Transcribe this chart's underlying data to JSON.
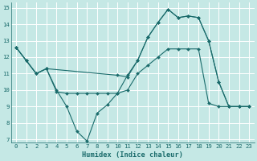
{
  "xlabel": "Humidex (Indice chaleur)",
  "xlim": [
    -0.5,
    23.5
  ],
  "ylim": [
    6.8,
    15.3
  ],
  "yticks": [
    7,
    8,
    9,
    10,
    11,
    12,
    13,
    14,
    15
  ],
  "xticks": [
    0,
    1,
    2,
    3,
    4,
    5,
    6,
    7,
    8,
    9,
    10,
    11,
    12,
    13,
    14,
    15,
    16,
    17,
    18,
    19,
    20,
    21,
    22,
    23
  ],
  "bg_color": "#c5e8e5",
  "line_color": "#1a6b6b",
  "grid_color": "#ffffff",
  "lines": [
    {
      "x": [
        0,
        1,
        2,
        3,
        10,
        11,
        12,
        13,
        14,
        15,
        16,
        17,
        18,
        19,
        20,
        21,
        22,
        23
      ],
      "y": [
        12.6,
        11.8,
        11.0,
        11.3,
        10.9,
        10.8,
        11.8,
        13.2,
        14.1,
        14.9,
        14.4,
        14.5,
        14.4,
        13.0,
        10.5,
        9.0,
        9.0,
        9.0
      ]
    },
    {
      "x": [
        0,
        1,
        2,
        3,
        4,
        5,
        6,
        7,
        8,
        9,
        10,
        11,
        12,
        13,
        14,
        15,
        16,
        17,
        18,
        19,
        20,
        21,
        22,
        23
      ],
      "y": [
        12.6,
        11.8,
        11.0,
        11.3,
        9.9,
        9.8,
        9.8,
        9.8,
        9.8,
        9.8,
        9.8,
        10.0,
        11.0,
        11.5,
        12.0,
        12.5,
        12.5,
        12.5,
        12.5,
        9.2,
        9.0,
        9.0,
        9.0,
        9.0
      ]
    },
    {
      "x": [
        0,
        1,
        2,
        3,
        4,
        5,
        6,
        7,
        8,
        9,
        10,
        11,
        12,
        13,
        14,
        15,
        16,
        17,
        18,
        19,
        20,
        21,
        22,
        23
      ],
      "y": [
        12.6,
        11.8,
        11.0,
        11.3,
        10.0,
        9.0,
        7.5,
        6.9,
        8.6,
        9.1,
        9.8,
        10.9,
        11.8,
        13.2,
        14.1,
        14.9,
        14.4,
        14.5,
        14.4,
        13.0,
        10.5,
        9.0,
        9.0,
        9.0
      ]
    }
  ]
}
